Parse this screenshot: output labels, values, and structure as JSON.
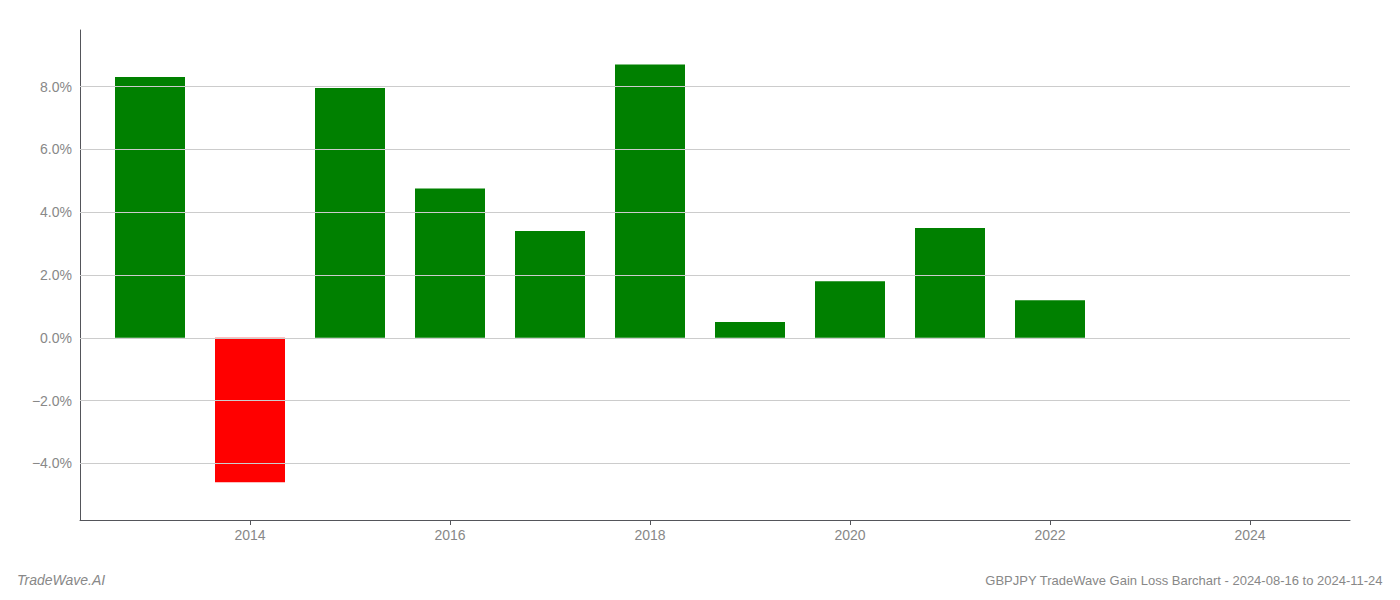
{
  "chart_data": {
    "type": "bar",
    "title": "GBPJPY TradeWave Gain Loss Barchart - 2024-08-16 to 2024-11-24",
    "annotations": [
      "TradeWave.AI"
    ],
    "x": [
      2013,
      2014,
      2015,
      2016,
      2017,
      2018,
      2019,
      2020,
      2021,
      2022,
      2023
    ],
    "values": [
      0.083,
      -0.046,
      0.0795,
      0.0475,
      0.034,
      0.087,
      0.005,
      0.018,
      0.035,
      0.012,
      null
    ],
    "colors": [
      "#008000",
      "#ff0000",
      "#008000",
      "#008000",
      "#008000",
      "#008000",
      "#008000",
      "#008000",
      "#008000",
      "#008000",
      null
    ],
    "xlim": [
      2012.3,
      2025.0
    ],
    "xticks": [
      2014,
      2016,
      2018,
      2020,
      2022,
      2024
    ],
    "ylim": [
      -0.058,
      0.098
    ],
    "yticks": [
      {
        "value": -0.04,
        "label": "−4.0%"
      },
      {
        "value": -0.02,
        "label": "−2.0%"
      },
      {
        "value": 0.0,
        "label": "0.0%"
      },
      {
        "value": 0.02,
        "label": "2.0%"
      },
      {
        "value": 0.04,
        "label": "4.0%"
      },
      {
        "value": 0.06,
        "label": "6.0%"
      },
      {
        "value": 0.08,
        "label": "8.0%"
      }
    ],
    "grid": true
  }
}
